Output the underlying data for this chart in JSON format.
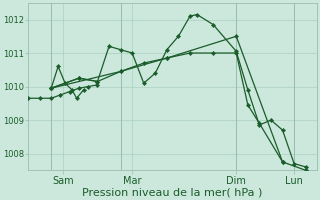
{
  "background_color": "#cce8dc",
  "grid_color": "#b0d4c4",
  "line_color": "#1a5c2a",
  "xlabel": "Pression niveau de la mer( hPa )",
  "xlabel_fontsize": 8,
  "ylim": [
    1007.5,
    1012.5
  ],
  "yticks": [
    1008,
    1009,
    1010,
    1011,
    1012
  ],
  "xlim": [
    0,
    12.5
  ],
  "day_labels": [
    "Sam",
    "Mar",
    "Dim",
    "Lun"
  ],
  "day_positions": [
    1.5,
    4.5,
    9.0,
    11.5
  ],
  "vline_positions": [
    1.0,
    4.0,
    9.0,
    11.5
  ],
  "lines": [
    {
      "xy": [
        [
          0.0,
          1009.65
        ],
        [
          0.5,
          1009.65
        ],
        [
          1.0,
          1009.65
        ],
        [
          1.4,
          1009.75
        ],
        [
          1.8,
          1009.85
        ],
        [
          2.2,
          1009.95
        ],
        [
          2.6,
          1010.0
        ],
        [
          3.0,
          1010.05
        ]
      ]
    },
    {
      "xy": [
        [
          1.0,
          1009.95
        ],
        [
          1.3,
          1010.6
        ],
        [
          1.6,
          1010.1
        ],
        [
          1.9,
          1009.9
        ],
        [
          2.1,
          1009.65
        ],
        [
          2.4,
          1009.9
        ]
      ]
    },
    {
      "xy": [
        [
          1.0,
          1009.95
        ],
        [
          2.2,
          1010.25
        ],
        [
          3.0,
          1010.15
        ],
        [
          3.5,
          1011.2
        ],
        [
          4.0,
          1011.1
        ],
        [
          4.5,
          1011.0
        ],
        [
          5.0,
          1010.1
        ],
        [
          5.5,
          1010.4
        ],
        [
          6.0,
          1011.1
        ],
        [
          6.5,
          1011.5
        ],
        [
          7.0,
          1012.1
        ],
        [
          7.3,
          1012.15
        ],
        [
          8.0,
          1011.85
        ],
        [
          9.0,
          1011.05
        ],
        [
          9.5,
          1009.9
        ],
        [
          10.0,
          1008.85
        ],
        [
          10.5,
          1009.0
        ],
        [
          11.0,
          1008.7
        ],
        [
          11.5,
          1007.7
        ],
        [
          12.0,
          1007.6
        ]
      ]
    },
    {
      "xy": [
        [
          1.0,
          1009.95
        ],
        [
          2.2,
          1010.25
        ],
        [
          3.0,
          1010.15
        ],
        [
          4.0,
          1010.45
        ],
        [
          5.0,
          1010.7
        ],
        [
          6.0,
          1010.85
        ],
        [
          7.0,
          1011.0
        ],
        [
          8.0,
          1011.0
        ],
        [
          9.0,
          1011.0
        ],
        [
          9.5,
          1009.45
        ],
        [
          10.0,
          1008.9
        ],
        [
          11.0,
          1007.75
        ],
        [
          12.0,
          1007.5
        ]
      ]
    },
    {
      "xy": [
        [
          1.0,
          1009.95
        ],
        [
          4.0,
          1010.45
        ],
        [
          6.0,
          1010.85
        ],
        [
          9.0,
          1011.5
        ],
        [
          11.0,
          1007.75
        ]
      ]
    }
  ]
}
